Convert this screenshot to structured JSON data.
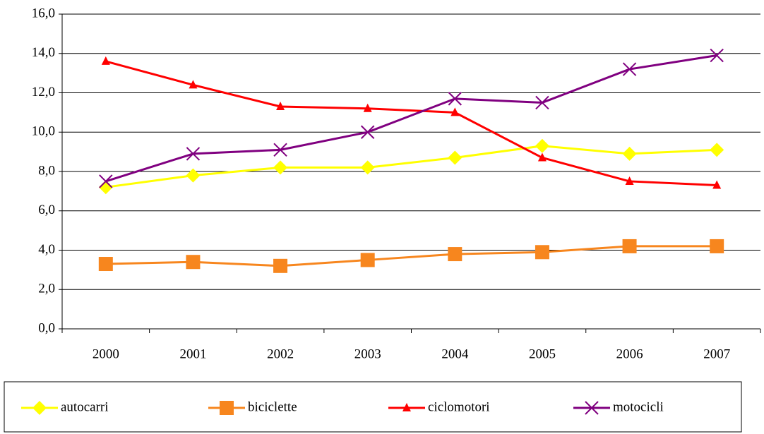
{
  "chart_data": {
    "type": "line",
    "categories": [
      "2000",
      "2001",
      "2002",
      "2003",
      "2004",
      "2005",
      "2006",
      "2007"
    ],
    "series": [
      {
        "name": "autocarri",
        "color": "#ffff00",
        "marker": "diamond",
        "values": [
          7.2,
          7.8,
          8.2,
          8.2,
          8.7,
          9.3,
          8.9,
          9.1
        ]
      },
      {
        "name": "biciclette",
        "color": "#f7861e",
        "marker": "square",
        "values": [
          3.3,
          3.4,
          3.2,
          3.5,
          3.8,
          3.9,
          4.2,
          4.2
        ]
      },
      {
        "name": "ciclomotori",
        "color": "#ff0000",
        "marker": "triangle",
        "values": [
          13.6,
          12.4,
          11.3,
          11.2,
          11.0,
          8.7,
          7.5,
          7.3
        ]
      },
      {
        "name": "motocicli",
        "color": "#800080",
        "marker": "x",
        "values": [
          7.5,
          8.9,
          9.1,
          10.0,
          11.7,
          11.5,
          13.2,
          13.9
        ]
      }
    ],
    "ylim": [
      0,
      16
    ],
    "yticks": [
      {
        "value": 0,
        "label": "0,0"
      },
      {
        "value": 2,
        "label": "2,0"
      },
      {
        "value": 4,
        "label": "4,0"
      },
      {
        "value": 6,
        "label": "6,0"
      },
      {
        "value": 8,
        "label": "8,0"
      },
      {
        "value": 10,
        "label": "10,0"
      },
      {
        "value": 12,
        "label": "12,0"
      },
      {
        "value": 14,
        "label": "14,0"
      },
      {
        "value": 16,
        "label": "16,0"
      }
    ],
    "grid": true,
    "legend": "bottom"
  }
}
